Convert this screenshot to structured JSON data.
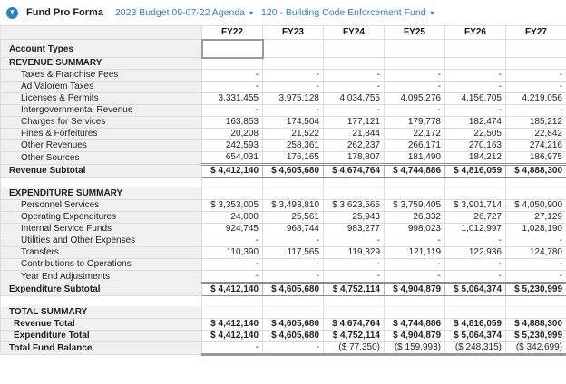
{
  "colors": {
    "accent": "#2e7fc1",
    "label_column_bg": "#f0f0f0",
    "rule_dark": "#8c8c8c",
    "grid_light": "#dcdcdc"
  },
  "toolbar": {
    "icon": "circle-chevron-down-icon",
    "title": "Fund Pro Forma",
    "caret": "▾",
    "dropdowns": [
      {
        "label": "2023 Budget 09-07-22 Agenda"
      },
      {
        "label": "120 - Building Code Enforcement Fund"
      }
    ]
  },
  "table": {
    "columns": [
      "FY22",
      "FY23",
      "FY24",
      "FY25",
      "FY26",
      "FY27"
    ],
    "rows": [
      {
        "type": "account",
        "label": "Account Types",
        "values": [
          "",
          "",
          "",
          "",
          "",
          ""
        ]
      },
      {
        "type": "section",
        "label": "REVENUE SUMMARY",
        "values": [
          "",
          "",
          "",
          "",
          "",
          ""
        ]
      },
      {
        "type": "detail",
        "label": "Taxes & Franchise Fees",
        "values": [
          "-",
          "-",
          "-",
          "-",
          "-",
          "-"
        ]
      },
      {
        "type": "detail",
        "label": "Ad Valorem Taxes",
        "values": [
          "-",
          "-",
          "-",
          "-",
          "-",
          "-"
        ]
      },
      {
        "type": "detail",
        "label": "Licenses & Permits",
        "values": [
          "3,331,455",
          "3,975,128",
          "4,034,755",
          "4,095,276",
          "4,156,705",
          "4,219,056"
        ]
      },
      {
        "type": "detail",
        "label": "Intergovernmental Revenue",
        "values": [
          "-",
          "-",
          "-",
          "-",
          "-",
          "-"
        ]
      },
      {
        "type": "detail",
        "label": "Charges for Services",
        "values": [
          "163,853",
          "174,504",
          "177,121",
          "179,778",
          "182,474",
          "185,212"
        ]
      },
      {
        "type": "detail",
        "label": "Fines & Forfeitures",
        "values": [
          "20,208",
          "21,522",
          "21,844",
          "22,172",
          "22,505",
          "22,842"
        ]
      },
      {
        "type": "detail",
        "label": "Other Revenues",
        "values": [
          "242,593",
          "258,361",
          "262,237",
          "266,171",
          "270,163",
          "274,216"
        ]
      },
      {
        "type": "detail",
        "label": "Other Sources",
        "values": [
          "654,031",
          "176,165",
          "178,807",
          "181,490",
          "184,212",
          "186,975"
        ]
      },
      {
        "type": "subtotal",
        "label": "Revenue Subtotal",
        "values": [
          "$ 4,412,140",
          "$ 4,605,680",
          "$ 4,674,764",
          "$ 4,744,886",
          "$ 4,816,059",
          "$ 4,888,300"
        ]
      },
      {
        "type": "blank",
        "label": "",
        "values": [
          "",
          "",
          "",
          "",
          "",
          ""
        ]
      },
      {
        "type": "section",
        "label": "EXPENDITURE SUMMARY",
        "values": [
          "",
          "",
          "",
          "",
          "",
          ""
        ]
      },
      {
        "type": "detail",
        "label": "Personnel Services",
        "values": [
          "$ 3,353,005",
          "$ 3,493,810",
          "$ 3,623,565",
          "$ 3,759,405",
          "$ 3,901,714",
          "$ 4,050,900"
        ]
      },
      {
        "type": "detail",
        "label": "Operating Expenditures",
        "values": [
          "24,000",
          "25,561",
          "25,943",
          "26,332",
          "26,727",
          "27,129"
        ]
      },
      {
        "type": "detail",
        "label": "Internal Service Funds",
        "values": [
          "924,745",
          "968,744",
          "983,277",
          "998,023",
          "1,012,997",
          "1,028,190"
        ]
      },
      {
        "type": "detail",
        "label": "Utilities and Other Expenses",
        "values": [
          "-",
          "-",
          "-",
          "-",
          "-",
          "-"
        ]
      },
      {
        "type": "detail",
        "label": "Transfers",
        "values": [
          "110,390",
          "117,565",
          "119,329",
          "121,119",
          "122,936",
          "124,780"
        ]
      },
      {
        "type": "detail",
        "label": "Contributions to Operations",
        "values": [
          "-",
          "-",
          "-",
          "-",
          "-",
          "-"
        ]
      },
      {
        "type": "detail",
        "label": "Year End Adjustments",
        "values": [
          "-",
          "-",
          "-",
          "-",
          "-",
          "-"
        ]
      },
      {
        "type": "subtotal",
        "label": "Expenditure Subtotal",
        "values": [
          "$ 4,412,140",
          "$ 4,605,680",
          "$ 4,752,114",
          "$ 4,904,879",
          "$ 5,064,374",
          "$ 5,230,999"
        ]
      },
      {
        "type": "blank",
        "label": "",
        "values": [
          "",
          "",
          "",
          "",
          "",
          ""
        ]
      },
      {
        "type": "section",
        "label": "TOTAL SUMMARY",
        "values": [
          "",
          "",
          "",
          "",
          "",
          ""
        ]
      },
      {
        "type": "total",
        "label": "Revenue Total",
        "values": [
          "$ 4,412,140",
          "$ 4,605,680",
          "$ 4,674,764",
          "$ 4,744,886",
          "$ 4,816,059",
          "$ 4,888,300"
        ]
      },
      {
        "type": "total",
        "label": "Expenditure Total",
        "values": [
          "$ 4,412,140",
          "$ 4,605,680",
          "$ 4,752,114",
          "$ 4,904,879",
          "$ 5,064,374",
          "$ 5,230,999"
        ]
      },
      {
        "type": "grand",
        "label": "Total Fund Balance",
        "values": [
          "-",
          "-",
          "($ 77,350)",
          "($ 159,993)",
          "($ 248,315)",
          "($ 342,699)"
        ]
      }
    ]
  }
}
